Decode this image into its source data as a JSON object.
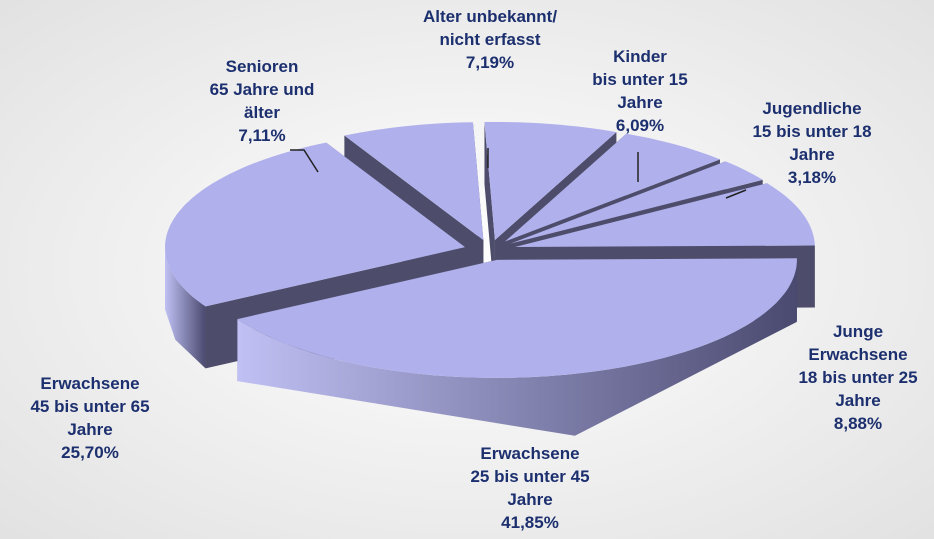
{
  "chart_data": {
    "type": "pie3d",
    "categories": [
      [
        "Alter unbekannt/",
        "nicht erfasst"
      ],
      [
        "Kinder",
        "bis unter 15",
        "Jahre"
      ],
      [
        "Jugendliche",
        "15 bis unter 18",
        "Jahre"
      ],
      [
        "Junge",
        "Erwachsene",
        "18 bis unter 25",
        "Jahre"
      ],
      [
        "Erwachsene",
        "25 bis unter 45",
        "Jahre"
      ],
      [
        "Erwachsene",
        "45 bis unter 65",
        "Jahre"
      ],
      [
        "Senioren",
        "65 Jahre und",
        "älter"
      ]
    ],
    "values": [
      7.19,
      6.09,
      3.18,
      8.88,
      41.85,
      25.7,
      7.11
    ],
    "value_labels": [
      "7,19%",
      "6,09%",
      "3,18%",
      "8,88%",
      "41,85%",
      "25,70%",
      "7,11%"
    ],
    "color": "#b0b0ec",
    "side_color": "#4d4d6b",
    "label_color": "#1c2f6e"
  }
}
